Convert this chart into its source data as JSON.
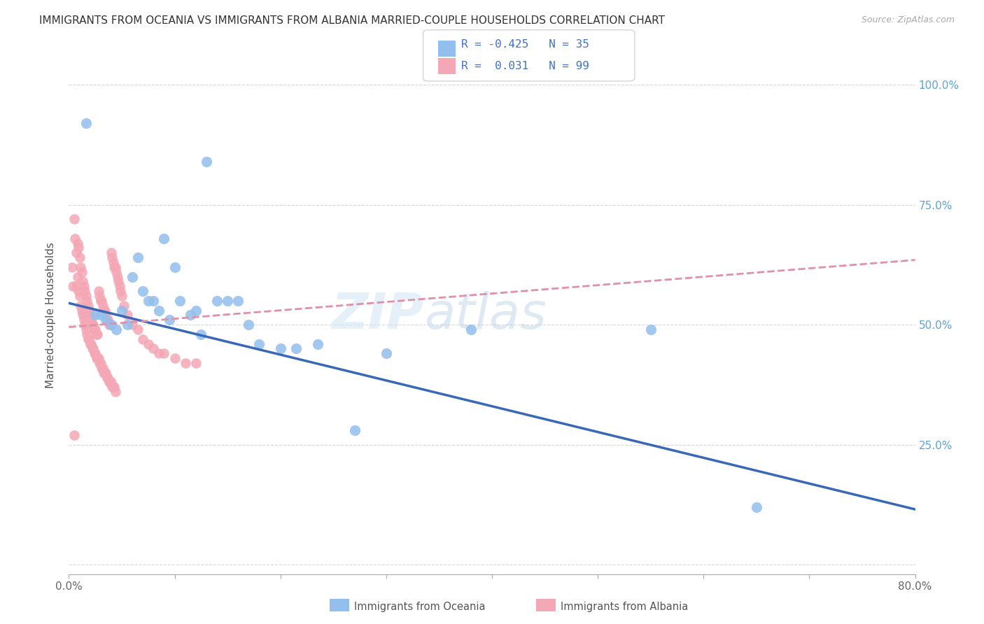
{
  "title": "IMMIGRANTS FROM OCEANIA VS IMMIGRANTS FROM ALBANIA MARRIED-COUPLE HOUSEHOLDS CORRELATION CHART",
  "source": "Source: ZipAtlas.com",
  "ylabel": "Married-couple Households",
  "R1": "-0.425",
  "N1": "35",
  "R2": "0.031",
  "N2": "99",
  "color_oceania": "#92BFED",
  "color_albania": "#F4A7B5",
  "color_trendline_oceania": "#3A68B8",
  "color_trendline_albania": "#E090A8",
  "background_color": "#FFFFFF",
  "legend_label1": "Immigrants from Oceania",
  "legend_label2": "Immigrants from Albania",
  "xlim": [
    0.0,
    0.8
  ],
  "ylim": [
    -0.02,
    1.06
  ],
  "oceania_x": [
    0.016,
    0.13,
    0.025,
    0.03,
    0.035,
    0.04,
    0.045,
    0.05,
    0.055,
    0.06,
    0.065,
    0.07,
    0.075,
    0.08,
    0.085,
    0.09,
    0.095,
    0.1,
    0.105,
    0.115,
    0.12,
    0.125,
    0.14,
    0.15,
    0.16,
    0.17,
    0.18,
    0.2,
    0.215,
    0.235,
    0.27,
    0.3,
    0.38,
    0.55,
    0.65
  ],
  "oceania_y": [
    0.92,
    0.84,
    0.52,
    0.52,
    0.51,
    0.5,
    0.49,
    0.53,
    0.5,
    0.6,
    0.64,
    0.57,
    0.55,
    0.55,
    0.53,
    0.68,
    0.51,
    0.62,
    0.55,
    0.52,
    0.53,
    0.48,
    0.55,
    0.55,
    0.55,
    0.5,
    0.46,
    0.45,
    0.45,
    0.46,
    0.28,
    0.44,
    0.49,
    0.49,
    0.12
  ],
  "albania_x": [
    0.003,
    0.004,
    0.005,
    0.006,
    0.007,
    0.007,
    0.008,
    0.008,
    0.009,
    0.009,
    0.01,
    0.01,
    0.011,
    0.011,
    0.012,
    0.012,
    0.013,
    0.013,
    0.014,
    0.014,
    0.015,
    0.015,
    0.016,
    0.016,
    0.017,
    0.017,
    0.018,
    0.018,
    0.019,
    0.019,
    0.02,
    0.02,
    0.021,
    0.021,
    0.022,
    0.022,
    0.023,
    0.023,
    0.024,
    0.024,
    0.025,
    0.025,
    0.026,
    0.026,
    0.027,
    0.027,
    0.028,
    0.028,
    0.029,
    0.029,
    0.03,
    0.03,
    0.031,
    0.031,
    0.032,
    0.032,
    0.033,
    0.033,
    0.034,
    0.034,
    0.035,
    0.035,
    0.036,
    0.036,
    0.037,
    0.037,
    0.038,
    0.038,
    0.039,
    0.039,
    0.04,
    0.04,
    0.041,
    0.041,
    0.042,
    0.042,
    0.043,
    0.043,
    0.044,
    0.044,
    0.045,
    0.046,
    0.047,
    0.048,
    0.049,
    0.05,
    0.052,
    0.055,
    0.06,
    0.065,
    0.07,
    0.075,
    0.08,
    0.085,
    0.09,
    0.1,
    0.11,
    0.12,
    0.005
  ],
  "albania_y": [
    0.62,
    0.58,
    0.72,
    0.68,
    0.65,
    0.58,
    0.67,
    0.6,
    0.66,
    0.57,
    0.64,
    0.56,
    0.62,
    0.54,
    0.61,
    0.53,
    0.59,
    0.52,
    0.58,
    0.51,
    0.57,
    0.5,
    0.56,
    0.49,
    0.55,
    0.48,
    0.54,
    0.47,
    0.53,
    0.47,
    0.52,
    0.46,
    0.51,
    0.46,
    0.5,
    0.45,
    0.5,
    0.45,
    0.49,
    0.44,
    0.49,
    0.44,
    0.48,
    0.43,
    0.48,
    0.43,
    0.57,
    0.43,
    0.56,
    0.42,
    0.55,
    0.42,
    0.55,
    0.41,
    0.54,
    0.41,
    0.53,
    0.4,
    0.53,
    0.4,
    0.52,
    0.4,
    0.51,
    0.39,
    0.51,
    0.39,
    0.5,
    0.38,
    0.5,
    0.38,
    0.65,
    0.38,
    0.64,
    0.37,
    0.63,
    0.37,
    0.62,
    0.37,
    0.62,
    0.36,
    0.61,
    0.6,
    0.59,
    0.58,
    0.57,
    0.56,
    0.54,
    0.52,
    0.5,
    0.49,
    0.47,
    0.46,
    0.45,
    0.44,
    0.44,
    0.43,
    0.42,
    0.42,
    0.27
  ],
  "trendline_oce_x0": 0.0,
  "trendline_oce_y0": 0.545,
  "trendline_oce_x1": 0.8,
  "trendline_oce_y1": 0.115,
  "trendline_alb_x0": 0.0,
  "trendline_alb_y0": 0.495,
  "trendline_alb_x1": 0.8,
  "trendline_alb_y1": 0.635
}
